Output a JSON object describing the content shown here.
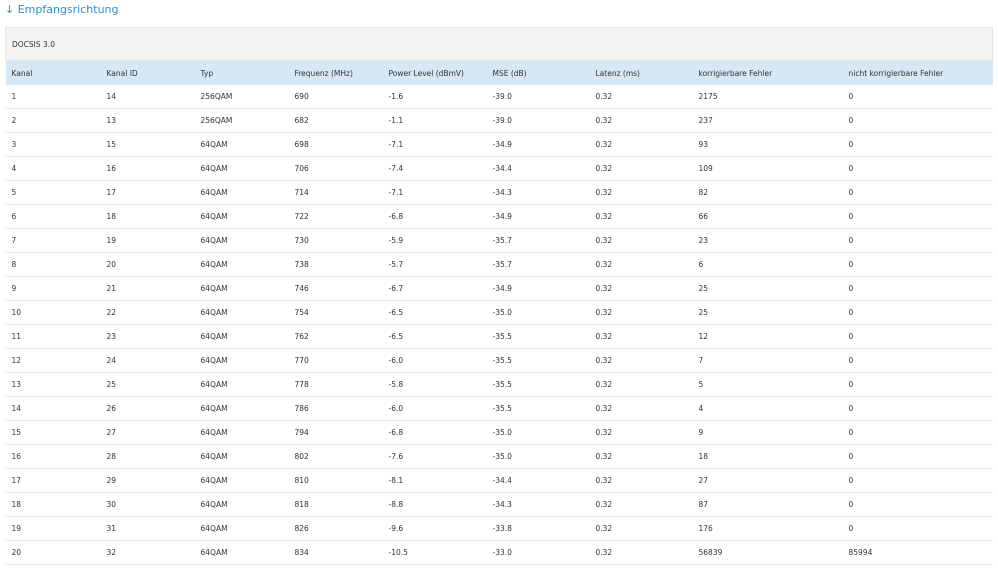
{
  "header": {
    "title": "↓ Empfangsrichtung"
  },
  "table": {
    "caption": "DOCSIS 3.0",
    "columns": [
      "Kanal",
      "Kanal ID",
      "Typ",
      "Frequenz (MHz)",
      "Power Level (dBmV)",
      "MSE (dB)",
      "Latenz (ms)",
      "korrigierbare Fehler",
      "nicht korrigierbare Fehler"
    ],
    "rows": [
      [
        "1",
        "14",
        "256QAM",
        "690",
        "-1.6",
        "-39.0",
        "0.32",
        "2175",
        "0"
      ],
      [
        "2",
        "13",
        "256QAM",
        "682",
        "-1.1",
        "-39.0",
        "0.32",
        "237",
        "0"
      ],
      [
        "3",
        "15",
        "64QAM",
        "698",
        "-7.1",
        "-34.9",
        "0.32",
        "93",
        "0"
      ],
      [
        "4",
        "16",
        "64QAM",
        "706",
        "-7.4",
        "-34.4",
        "0.32",
        "109",
        "0"
      ],
      [
        "5",
        "17",
        "64QAM",
        "714",
        "-7.1",
        "-34.3",
        "0.32",
        "82",
        "0"
      ],
      [
        "6",
        "18",
        "64QAM",
        "722",
        "-6.8",
        "-34.9",
        "0.32",
        "66",
        "0"
      ],
      [
        "7",
        "19",
        "64QAM",
        "730",
        "-5.9",
        "-35.7",
        "0.32",
        "23",
        "0"
      ],
      [
        "8",
        "20",
        "64QAM",
        "738",
        "-5.7",
        "-35.7",
        "0.32",
        "6",
        "0"
      ],
      [
        "9",
        "21",
        "64QAM",
        "746",
        "-6.7",
        "-34.9",
        "0.32",
        "25",
        "0"
      ],
      [
        "10",
        "22",
        "64QAM",
        "754",
        "-6.5",
        "-35.0",
        "0.32",
        "25",
        "0"
      ],
      [
        "11",
        "23",
        "64QAM",
        "762",
        "-6.5",
        "-35.5",
        "0.32",
        "12",
        "0"
      ],
      [
        "12",
        "24",
        "64QAM",
        "770",
        "-6.0",
        "-35.5",
        "0.32",
        "7",
        "0"
      ],
      [
        "13",
        "25",
        "64QAM",
        "778",
        "-5.8",
        "-35.5",
        "0.32",
        "5",
        "0"
      ],
      [
        "14",
        "26",
        "64QAM",
        "786",
        "-6.0",
        "-35.5",
        "0.32",
        "4",
        "0"
      ],
      [
        "15",
        "27",
        "64QAM",
        "794",
        "-6.8",
        "-35.0",
        "0.32",
        "9",
        "0"
      ],
      [
        "16",
        "28",
        "64QAM",
        "802",
        "-7.6",
        "-35.0",
        "0.32",
        "18",
        "0"
      ],
      [
        "17",
        "29",
        "64QAM",
        "810",
        "-8.1",
        "-34.4",
        "0.32",
        "27",
        "0"
      ],
      [
        "18",
        "30",
        "64QAM",
        "818",
        "-8.8",
        "-34.3",
        "0.32",
        "87",
        "0"
      ],
      [
        "19",
        "31",
        "64QAM",
        "826",
        "-9.6",
        "-33.8",
        "0.32",
        "176",
        "0"
      ],
      [
        "20",
        "32",
        "64QAM",
        "834",
        "-10.5",
        "-33.0",
        "0.32",
        "56839",
        "85994"
      ]
    ]
  }
}
